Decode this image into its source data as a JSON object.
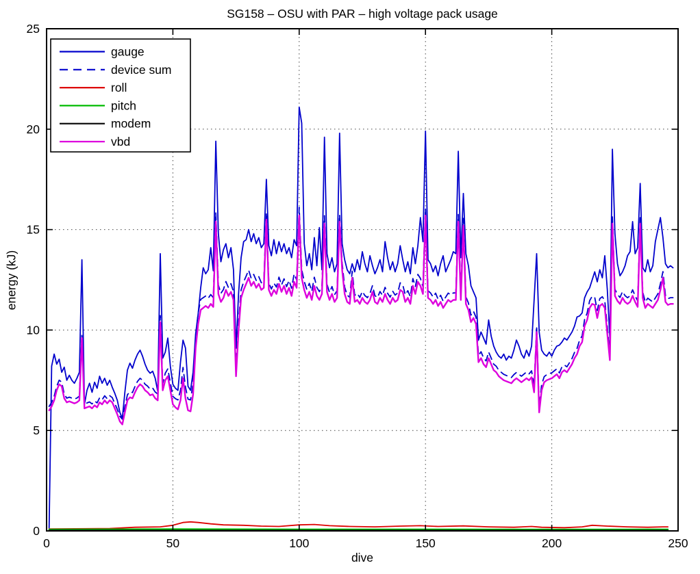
{
  "chart_data": {
    "type": "line",
    "title": "SG158 – OSU with PAR – high voltage pack usage",
    "xlabel": "dive",
    "ylabel": "energy (kJ)",
    "xlim": [
      0,
      250
    ],
    "ylim": [
      0,
      25
    ],
    "xticks": [
      0,
      50,
      100,
      150,
      200,
      250
    ],
    "yticks": [
      0,
      5,
      10,
      15,
      20,
      25
    ],
    "grid": "dotted",
    "grid_color": "#444444",
    "frame_color": "#000000",
    "legend_position": "upper-left",
    "series": [
      {
        "name": "gauge",
        "color": "#0000CC",
        "line": "solid",
        "width": 1.8,
        "x_start": 1,
        "values": [
          0.15,
          8.2,
          8.8,
          8.3,
          8.55,
          7.9,
          8.15,
          7.5,
          7.75,
          7.5,
          7.35,
          7.6,
          7.9,
          13.5,
          6.3,
          7.0,
          7.35,
          6.9,
          7.4,
          7.1,
          7.7,
          7.35,
          7.6,
          7.25,
          7.5,
          7.15,
          6.85,
          6.5,
          5.9,
          5.6,
          6.9,
          8.0,
          8.35,
          8.1,
          8.5,
          8.8,
          9.0,
          8.7,
          8.3,
          8.0,
          7.85,
          7.95,
          7.6,
          6.95,
          13.8,
          8.6,
          8.9,
          9.6,
          8.2,
          7.3,
          7.1,
          7.0,
          8.4,
          9.5,
          9.1,
          7.2,
          7.0,
          7.9,
          9.8,
          10.8,
          12.1,
          13.1,
          12.8,
          13.0,
          14.1,
          12.95,
          19.4,
          14.8,
          13.4,
          14.0,
          14.3,
          13.6,
          14.1,
          13.0,
          9.1,
          11.8,
          13.6,
          14.4,
          14.5,
          15.0,
          14.4,
          14.8,
          14.3,
          14.6,
          14.1,
          14.3,
          17.5,
          14.2,
          13.7,
          14.5,
          13.8,
          14.4,
          13.9,
          14.3,
          13.8,
          14.1,
          13.6,
          14.5,
          14.2,
          21.1,
          20.3,
          14.3,
          13.2,
          13.8,
          13.0,
          14.6,
          13.2,
          15.1,
          13.0,
          19.6,
          13.8,
          13.1,
          13.6,
          12.9,
          13.3,
          19.8,
          14.3,
          13.5,
          13.0,
          12.8,
          13.3,
          12.9,
          13.5,
          13.0,
          13.9,
          13.3,
          12.9,
          13.7,
          13.2,
          12.8,
          13.1,
          13.5,
          12.9,
          14.4,
          13.6,
          13.0,
          13.4,
          12.9,
          13.3,
          14.2,
          13.5,
          12.9,
          13.4,
          12.8,
          14.1,
          13.3,
          14.2,
          15.6,
          14.4,
          19.9,
          13.5,
          13.3,
          12.9,
          13.2,
          12.7,
          13.3,
          13.7,
          12.9,
          13.2,
          13.5,
          13.9,
          13.8,
          18.9,
          13.6,
          16.8,
          13.8,
          13.2,
          12.2,
          11.9,
          11.6,
          9.5,
          9.9,
          9.6,
          9.3,
          10.5,
          9.7,
          9.2,
          8.9,
          8.7,
          8.6,
          8.8,
          8.5,
          8.7,
          8.6,
          9.0,
          9.5,
          9.2,
          8.8,
          8.6,
          9.0,
          8.7,
          9.2,
          11.5,
          13.8,
          9.9,
          9.0,
          8.8,
          8.7,
          8.9,
          8.7,
          9.0,
          9.2,
          9.25,
          9.4,
          9.6,
          9.5,
          9.7,
          9.9,
          10.2,
          10.65,
          10.7,
          10.85,
          11.6,
          11.9,
          12.1,
          12.5,
          12.9,
          12.4,
          13.0,
          12.6,
          13.7,
          12.0,
          9.6,
          19.0,
          14.8,
          13.3,
          12.7,
          12.9,
          13.2,
          13.7,
          13.9,
          15.4,
          13.8,
          14.1,
          17.3,
          13.1,
          12.9,
          13.5,
          12.9,
          13.2,
          14.4,
          15.0,
          15.6,
          14.6,
          13.3,
          13.1,
          13.2,
          13.1
        ]
      },
      {
        "name": "device sum",
        "color": "#0000CC",
        "line": "dashed",
        "width": 1.8,
        "derived": "sum_of_devices"
      },
      {
        "name": "roll",
        "color": "#DD0000",
        "line": "solid",
        "width": 1.8,
        "points": [
          [
            1,
            0.1
          ],
          [
            25,
            0.12
          ],
          [
            35,
            0.18
          ],
          [
            45,
            0.2
          ],
          [
            50,
            0.28
          ],
          [
            54,
            0.42
          ],
          [
            57,
            0.45
          ],
          [
            60,
            0.42
          ],
          [
            65,
            0.35
          ],
          [
            70,
            0.3
          ],
          [
            78,
            0.28
          ],
          [
            85,
            0.24
          ],
          [
            92,
            0.22
          ],
          [
            100,
            0.3
          ],
          [
            106,
            0.32
          ],
          [
            112,
            0.26
          ],
          [
            120,
            0.22
          ],
          [
            130,
            0.2
          ],
          [
            140,
            0.24
          ],
          [
            148,
            0.26
          ],
          [
            155,
            0.22
          ],
          [
            165,
            0.25
          ],
          [
            175,
            0.2
          ],
          [
            185,
            0.18
          ],
          [
            192,
            0.22
          ],
          [
            196,
            0.18
          ],
          [
            205,
            0.16
          ],
          [
            212,
            0.2
          ],
          [
            216,
            0.28
          ],
          [
            222,
            0.24
          ],
          [
            230,
            0.2
          ],
          [
            238,
            0.18
          ],
          [
            244,
            0.2
          ],
          [
            246,
            0.2
          ]
        ]
      },
      {
        "name": "pitch",
        "color": "#00BB00",
        "line": "solid",
        "width": 2.2,
        "points": [
          [
            1,
            0.07
          ],
          [
            50,
            0.09
          ],
          [
            100,
            0.08
          ],
          [
            150,
            0.08
          ],
          [
            200,
            0.07
          ],
          [
            246,
            0.08
          ]
        ]
      },
      {
        "name": "modem",
        "color": "#000000",
        "line": "solid",
        "width": 1.6,
        "points": [
          [
            1,
            0.03
          ],
          [
            246,
            0.03
          ]
        ]
      },
      {
        "name": "vbd",
        "color": "#DD00DD",
        "line": "solid",
        "width": 2.4,
        "x_start": 1,
        "values": [
          6.0,
          6.2,
          6.5,
          7.0,
          7.3,
          7.2,
          6.6,
          6.4,
          6.45,
          6.4,
          6.35,
          6.4,
          6.5,
          9.6,
          6.1,
          6.15,
          6.2,
          6.1,
          6.25,
          6.15,
          6.4,
          6.3,
          6.5,
          6.35,
          6.5,
          6.4,
          6.1,
          5.8,
          5.45,
          5.3,
          5.9,
          6.5,
          6.65,
          6.6,
          6.9,
          7.15,
          7.3,
          7.2,
          7.0,
          6.9,
          6.75,
          6.8,
          6.6,
          6.5,
          10.4,
          7.0,
          7.5,
          7.7,
          7.0,
          6.3,
          6.15,
          6.05,
          6.5,
          7.6,
          6.6,
          6.0,
          5.95,
          6.8,
          9.1,
          10.3,
          11.0,
          11.1,
          11.2,
          11.1,
          11.3,
          11.15,
          15.4,
          11.8,
          11.4,
          11.6,
          12.0,
          11.7,
          11.9,
          11.5,
          7.7,
          10.0,
          11.6,
          12.0,
          12.3,
          12.6,
          12.2,
          12.4,
          12.1,
          12.3,
          12.0,
          12.1,
          15.5,
          12.0,
          11.7,
          12.0,
          11.8,
          12.3,
          11.9,
          12.2,
          11.8,
          12.1,
          11.7,
          12.4,
          12.1,
          15.7,
          12.6,
          12.0,
          11.6,
          11.9,
          11.5,
          12.2,
          11.7,
          11.5,
          11.8,
          15.3,
          11.9,
          11.5,
          11.8,
          11.4,
          11.6,
          15.4,
          13.0,
          11.8,
          11.4,
          11.3,
          12.6,
          11.4,
          11.5,
          11.3,
          11.6,
          11.4,
          11.3,
          11.5,
          11.9,
          11.4,
          11.3,
          11.6,
          11.4,
          11.8,
          11.5,
          11.3,
          11.6,
          11.4,
          11.5,
          12.0,
          11.9,
          11.4,
          11.6,
          11.3,
          12.2,
          11.8,
          12.4,
          12.2,
          11.8,
          15.7,
          11.6,
          11.5,
          11.3,
          11.5,
          11.2,
          11.4,
          11.1,
          11.3,
          11.5,
          11.4,
          11.5,
          11.5,
          15.4,
          11.5,
          15.2,
          11.3,
          11.0,
          10.4,
          10.6,
          10.3,
          8.4,
          8.6,
          8.3,
          8.15,
          8.6,
          8.3,
          8.0,
          7.9,
          7.7,
          7.6,
          7.5,
          7.45,
          7.4,
          7.35,
          7.5,
          7.6,
          7.5,
          7.4,
          7.5,
          7.6,
          7.5,
          7.65,
          6.9,
          9.9,
          5.9,
          7.0,
          7.4,
          7.5,
          7.55,
          7.6,
          7.7,
          7.8,
          7.6,
          7.9,
          8.0,
          7.9,
          8.1,
          8.3,
          8.6,
          8.8,
          9.2,
          9.4,
          10.2,
          10.5,
          11.1,
          11.3,
          11.25,
          10.6,
          11.2,
          11.3,
          11.1,
          9.8,
          8.5,
          15.3,
          11.7,
          11.45,
          11.3,
          11.6,
          11.4,
          11.3,
          11.4,
          11.7,
          11.4,
          11.15,
          15.3,
          11.6,
          11.1,
          11.3,
          11.2,
          11.1,
          11.3,
          11.5,
          12.0,
          12.6,
          11.4,
          11.25,
          11.3,
          11.3
        ]
      }
    ]
  }
}
